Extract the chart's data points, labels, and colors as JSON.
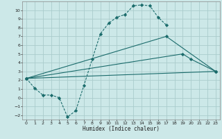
{
  "xlabel": "Humidex (Indice chaleur)",
  "background_color": "#cce8e8",
  "grid_color": "#aacccc",
  "line_color": "#1a6b6b",
  "xlim": [
    -0.5,
    23.5
  ],
  "ylim": [
    -2.5,
    11.0
  ],
  "xticks": [
    0,
    1,
    2,
    3,
    4,
    5,
    6,
    7,
    8,
    9,
    10,
    11,
    12,
    13,
    14,
    15,
    16,
    17,
    18,
    19,
    20,
    21,
    22,
    23
  ],
  "yticks": [
    -2,
    -1,
    0,
    1,
    2,
    3,
    4,
    5,
    6,
    7,
    8,
    9,
    10
  ],
  "series1_x": [
    0,
    1,
    2,
    3,
    4,
    5,
    6,
    7,
    8,
    9,
    10,
    11,
    12,
    13,
    14,
    15,
    16,
    17
  ],
  "series1_y": [
    2.2,
    1.1,
    0.3,
    0.3,
    0.0,
    -2.2,
    -1.5,
    1.4,
    4.4,
    7.3,
    8.5,
    9.2,
    9.5,
    10.5,
    10.6,
    10.5,
    9.2,
    8.3
  ],
  "series2_x": [
    0,
    17,
    23
  ],
  "series2_y": [
    2.2,
    7.0,
    3.0
  ],
  "series3_x": [
    0,
    19,
    20,
    23
  ],
  "series3_y": [
    2.2,
    5.0,
    4.4,
    3.0
  ],
  "series4_x": [
    0,
    23
  ],
  "series4_y": [
    2.2,
    3.0
  ]
}
